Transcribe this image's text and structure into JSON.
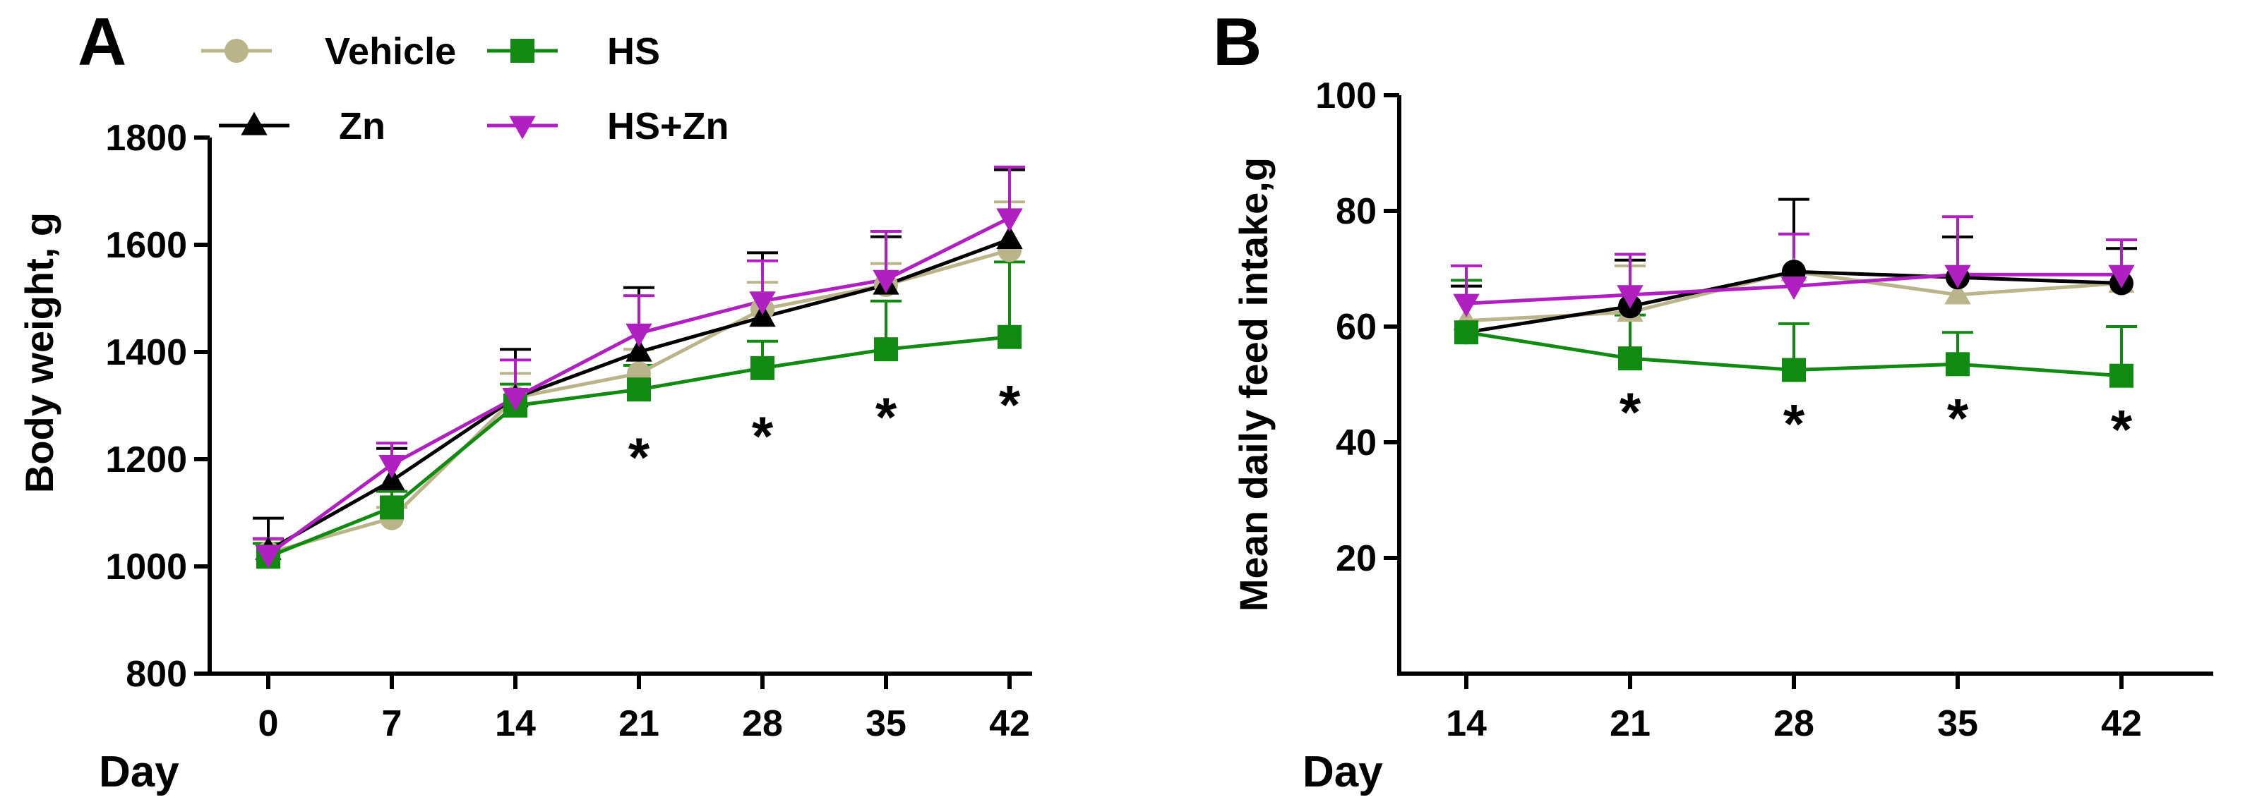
{
  "chart_data": [
    {
      "panel": "A",
      "type": "line",
      "ylabel": "Body weight, g",
      "xlabel": "Day",
      "categories": [
        "0",
        "7",
        "14",
        "21",
        "28",
        "35",
        "42"
      ],
      "ylim": [
        800,
        1800
      ],
      "yticks": [
        "800",
        "1000",
        "1200",
        "1400",
        "1600",
        "1800"
      ],
      "series": [
        {
          "name": "Vehicle",
          "color": "#b9b48a",
          "marker": "circle",
          "values": [
            1025,
            1090,
            1315,
            1360,
            1480,
            1525,
            1590
          ],
          "err": [
            25,
            20,
            45,
            45,
            50,
            40,
            90
          ]
        },
        {
          "name": "Zn",
          "color": "#000000",
          "marker": "triangle-up",
          "values": [
            1030,
            1160,
            1315,
            1400,
            1465,
            1525,
            1610
          ],
          "err": [
            60,
            60,
            90,
            120,
            120,
            90,
            130
          ]
        },
        {
          "name": "HS",
          "color": "#108a10",
          "marker": "square",
          "values": [
            1018,
            1110,
            1300,
            1330,
            1370,
            1405,
            1428
          ],
          "err": [
            25,
            30,
            40,
            45,
            50,
            90,
            140
          ]
        },
        {
          "name": "HS+Zn",
          "color": "#b020c0",
          "marker": "triangle-down",
          "values": [
            1022,
            1190,
            1315,
            1435,
            1495,
            1535,
            1650
          ],
          "err": [
            30,
            40,
            70,
            70,
            75,
            90,
            95
          ]
        }
      ],
      "significance": [
        {
          "day": "21",
          "label": "*"
        },
        {
          "day": "28",
          "label": "*"
        },
        {
          "day": "35",
          "label": "*"
        },
        {
          "day": "42",
          "label": "*"
        }
      ]
    },
    {
      "panel": "B",
      "type": "line",
      "ylabel": "Mean daily feed intake,g",
      "xlabel": "Day",
      "categories": [
        "14",
        "21",
        "28",
        "35",
        "42"
      ],
      "ylim": [
        0,
        100
      ],
      "yticks": [
        "20",
        "40",
        "60",
        "80",
        "100"
      ],
      "series": [
        {
          "name": "Vehicle",
          "color": "#b9b48a",
          "marker": "triangle-up",
          "values": [
            61,
            62.5,
            69.5,
            65.5,
            67.5
          ],
          "err": [
            6,
            8,
            6.5,
            10,
            6
          ]
        },
        {
          "name": "Zn",
          "color": "#000000",
          "marker": "circle",
          "values": [
            59,
            63.5,
            69.5,
            68.5,
            67.5
          ],
          "err": [
            8,
            8,
            12.5,
            7,
            6
          ]
        },
        {
          "name": "HS",
          "color": "#108a10",
          "marker": "square",
          "values": [
            59,
            54.5,
            52.5,
            53.5,
            51.5
          ],
          "err": [
            9,
            7.5,
            8,
            5.5,
            8.5
          ]
        },
        {
          "name": "HS+Zn",
          "color": "#b020c0",
          "marker": "triangle-down",
          "values": [
            64,
            65.5,
            67,
            69,
            69
          ],
          "err": [
            6.5,
            7,
            9,
            10,
            6
          ]
        }
      ],
      "significance": [
        {
          "day": "21",
          "label": "*"
        },
        {
          "day": "28",
          "label": "*"
        },
        {
          "day": "35",
          "label": "*"
        },
        {
          "day": "42",
          "label": "*"
        }
      ]
    }
  ],
  "legend": [
    {
      "label": "Vehicle",
      "color": "#b9b48a",
      "marker": "circle"
    },
    {
      "label": "HS",
      "color": "#108a10",
      "marker": "square"
    },
    {
      "label": "Zn",
      "color": "#000000",
      "marker": "triangle-up"
    },
    {
      "label": "HS+Zn",
      "color": "#b020c0",
      "marker": "triangle-down"
    }
  ]
}
